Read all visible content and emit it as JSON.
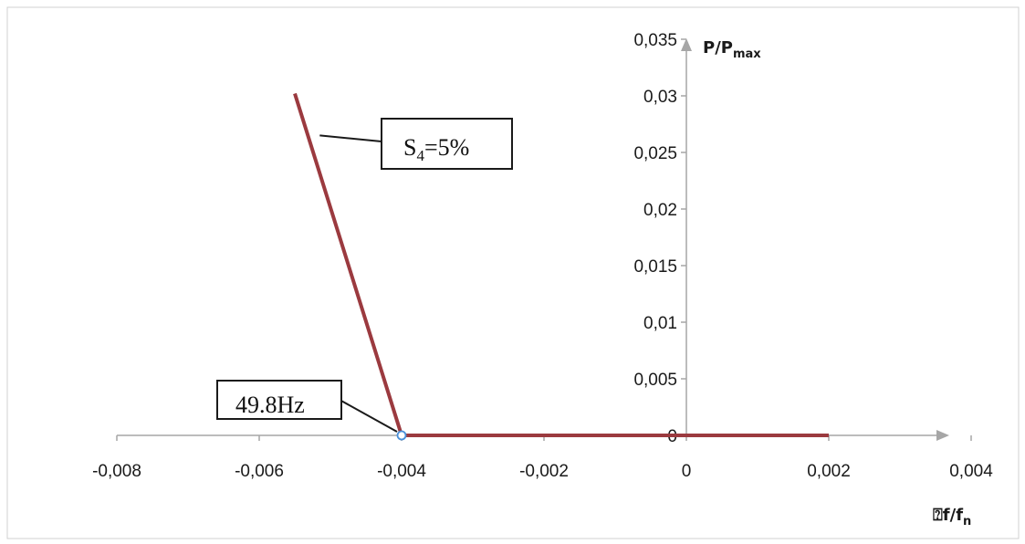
{
  "chart_data": {
    "type": "line",
    "x_axis": {
      "ticks": [
        "-0,008",
        "-0,006",
        "-0,004",
        "-0,002",
        "0",
        "0,002",
        "0,004"
      ],
      "tick_values": [
        -0.008,
        -0.006,
        -0.004,
        -0.002,
        0,
        0.002,
        0.004
      ],
      "xlim": [
        -0.008,
        0.004
      ],
      "label_main": "⍰f/f",
      "label_sub": "n"
    },
    "y_axis": {
      "ticks": [
        "0",
        "0,005",
        "0,01",
        "0,015",
        "0,02",
        "0,025",
        "0,03",
        "0,035"
      ],
      "tick_values": [
        0,
        0.005,
        0.01,
        0.015,
        0.02,
        0.025,
        0.03,
        0.035
      ],
      "ylim": [
        0,
        0.035
      ],
      "label_main": "P/P",
      "label_sub": "max"
    },
    "grid": false,
    "series": [
      {
        "color": "#9b3a3f",
        "points": [
          {
            "x": -0.0055,
            "y": 0.0302
          },
          {
            "x": -0.004,
            "y": 0
          },
          {
            "x": 0.002,
            "y": 0
          }
        ]
      }
    ],
    "marker": {
      "x": -0.004,
      "y": 0,
      "color": "#4a90d9"
    },
    "annotations": [
      {
        "id": "s4",
        "text_main": "S",
        "text_sub": "4",
        "text_rest": "=5%",
        "target": {
          "x": -0.00515,
          "y": 0.0265
        }
      },
      {
        "id": "freq",
        "text": "49.8Hz",
        "target": {
          "x": -0.004,
          "y": 0
        }
      }
    ],
    "colors": {
      "axis": "#a6a6a6",
      "series": "#9b3a3f",
      "marker": "#4a90d9"
    }
  }
}
